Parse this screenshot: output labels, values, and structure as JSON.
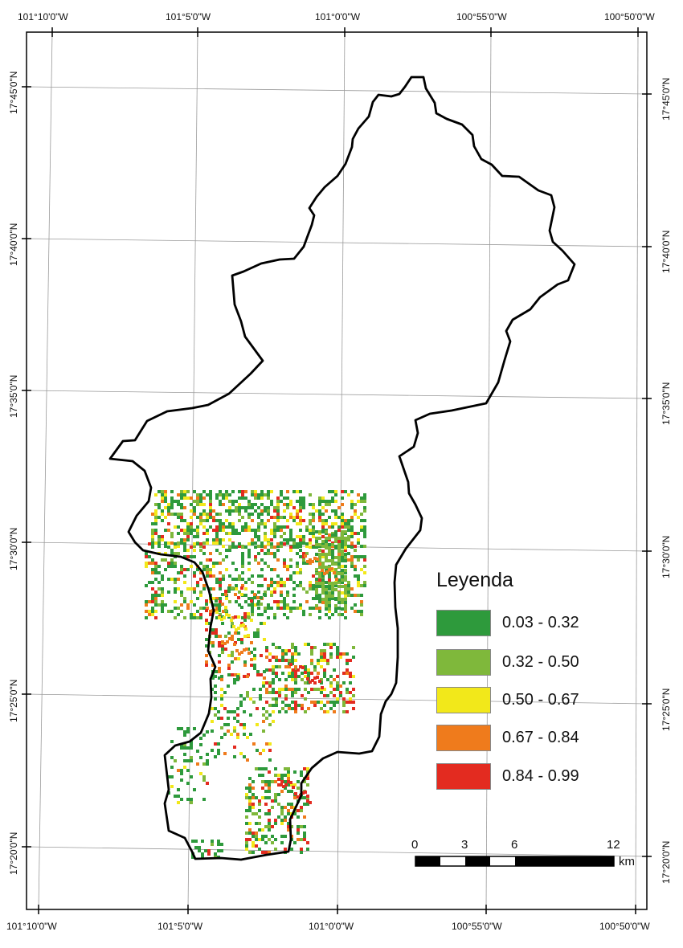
{
  "map": {
    "top_longitude_labels": [
      "101°10'0\"W",
      "101°5'0\"W",
      "101°0'0\"W",
      "100°55'0\"W",
      "100°50'0\"W"
    ],
    "bottom_longitude_labels": [
      "101°10'0\"W",
      "101°5'0\"W",
      "101°0'0\"W",
      "100°55'0\"W",
      "100°50'0\"W"
    ],
    "left_latitude_labels": [
      "17°45'0\"N",
      "17°40'0\"N",
      "17°35'0\"N",
      "17°30'0\"N",
      "17°25'0\"N",
      "17°20'0\"N"
    ],
    "right_latitude_labels": [
      "17°45'0\"N",
      "17°40'0\"N",
      "17°35'0\"N",
      "17°30'0\"N",
      "17°25'0\"N",
      "17°20'0\"N"
    ]
  },
  "legend": {
    "title": "Leyenda",
    "classes": [
      {
        "label": "0.03 - 0.32",
        "color": "#2e9a3c"
      },
      {
        "label": "0.32 - 0.50",
        "color": "#7fb83b"
      },
      {
        "label": "0.50 - 0.67",
        "color": "#f2e81a"
      },
      {
        "label": "0.67 - 0.84",
        "color": "#ef7b1c"
      },
      {
        "label": "0.84 - 0.99",
        "color": "#e32b20"
      }
    ]
  },
  "scale_bar": {
    "ticks": [
      "0",
      "3",
      "6",
      "12"
    ],
    "unit": "km"
  }
}
